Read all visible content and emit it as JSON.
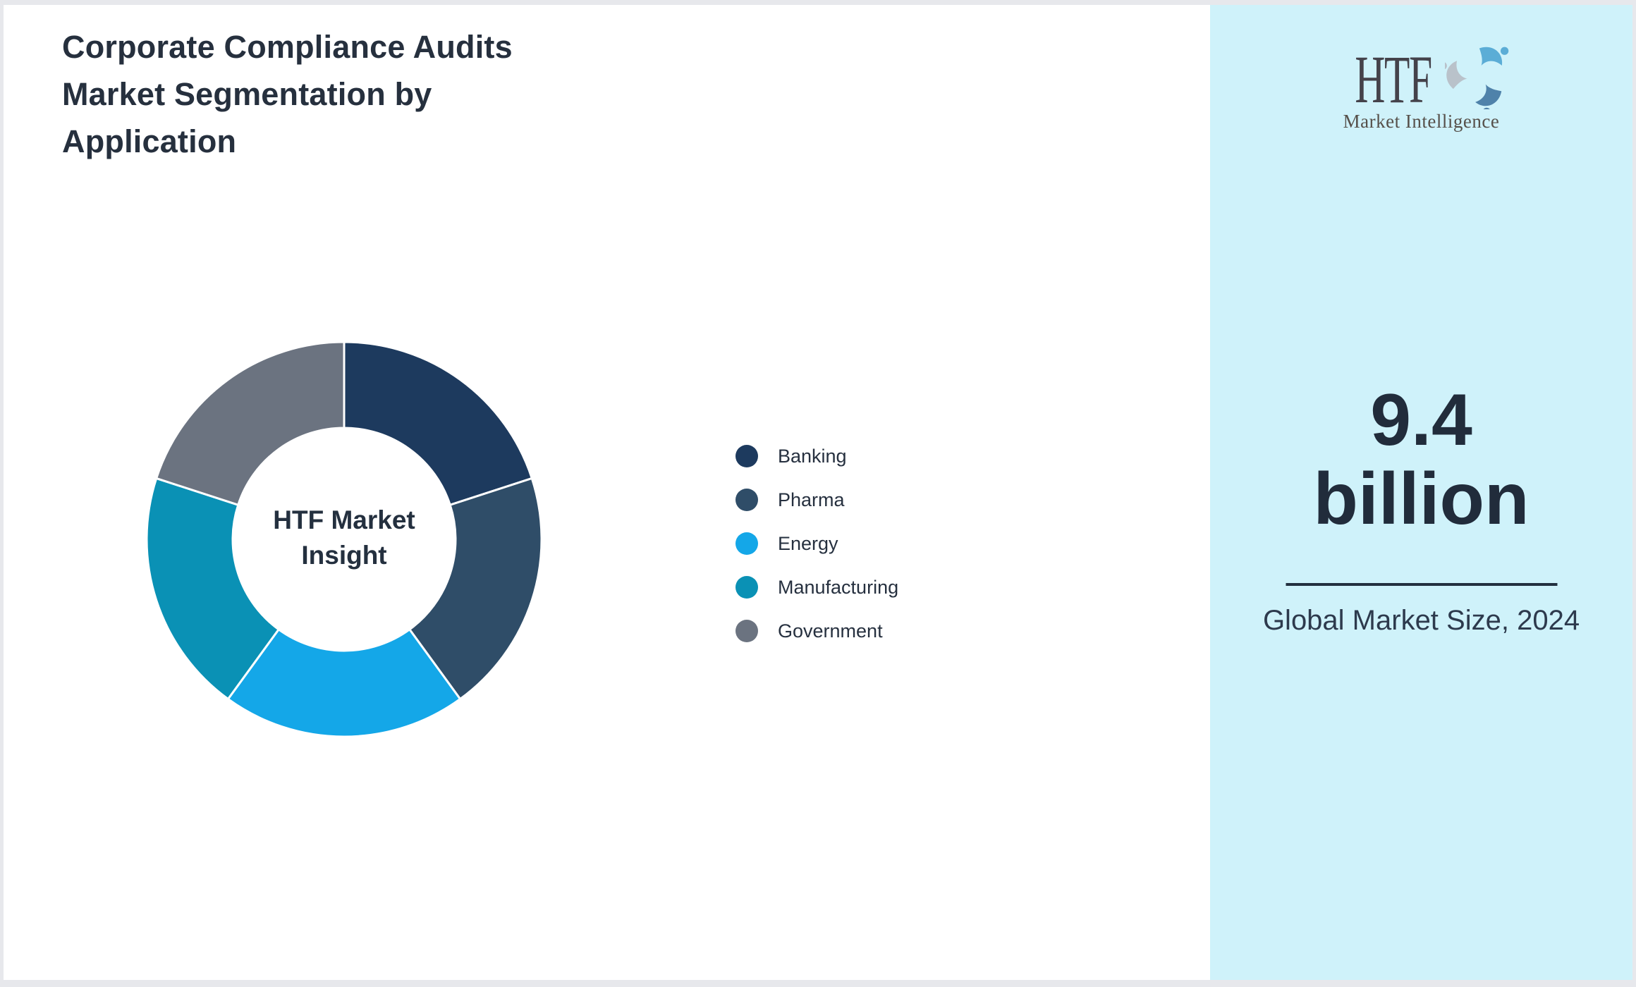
{
  "page": {
    "title": "Corporate Compliance Audits Market Segmentation by Application"
  },
  "chart_data": {
    "type": "pie",
    "donut": true,
    "center_label": "HTF Market Insight",
    "categories": [
      "Banking",
      "Pharma",
      "Energy",
      "Manufacturing",
      "Government"
    ],
    "values": [
      20,
      20,
      20,
      20,
      20
    ],
    "colors": [
      "#1d3a5e",
      "#2f4d68",
      "#14a7e8",
      "#0a91b5",
      "#6b7380"
    ],
    "legend_position": "right",
    "start_angle_deg": -90,
    "direction": "clockwise",
    "slice_gap_color": "#ffffff"
  },
  "sidebar": {
    "background_color": "#cff2fa",
    "logo": {
      "text": "HTF",
      "subtext": "Market Intelligence",
      "swirl_colors": [
        "#5badd6",
        "#4f82aa",
        "#b9c2ca"
      ]
    },
    "market_size_value": "9.4 billion",
    "market_size_caption": "Global Market Size, 2024"
  }
}
